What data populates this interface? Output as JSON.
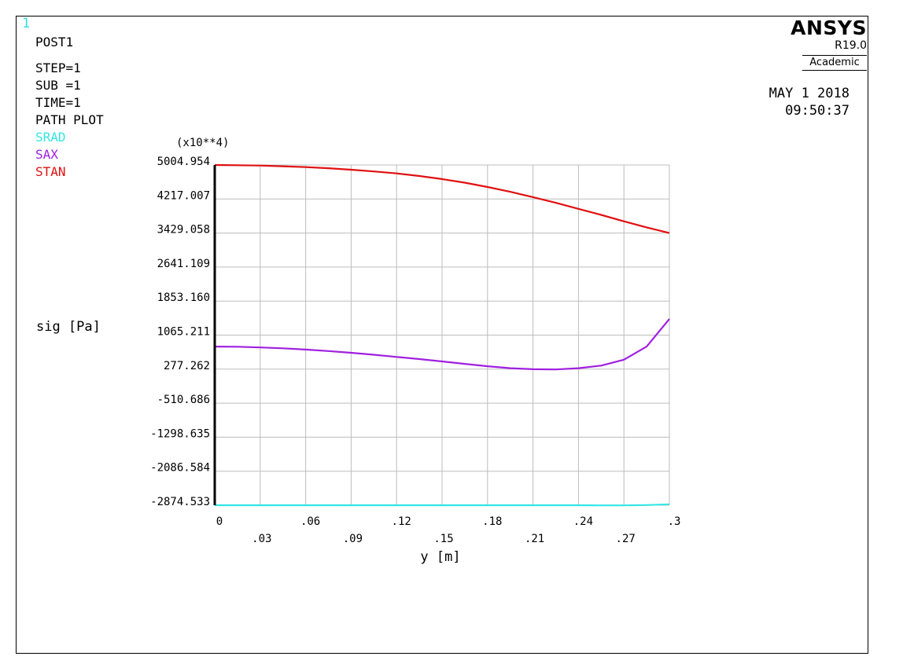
{
  "window_number": "1",
  "header": {
    "module": "POST1",
    "step": "STEP=1",
    "sub": "SUB =1",
    "time": "TIME=1",
    "plot_type": "PATH PLOT"
  },
  "logo": {
    "name": "ANSYS",
    "release": "R19.0",
    "edition": "Academic"
  },
  "date": "MAY  1 2018",
  "time": "09:50:37",
  "colors": {
    "SRAD": "#33e6e6",
    "SAX": "#a020e0",
    "STAN": "#e01010",
    "grid": "#bdbdbd"
  },
  "chart_data": {
    "type": "line",
    "xlabel": "y [m]",
    "ylabel": "sig [Pa]",
    "yscale_label": "(x10**4)",
    "xlim": [
      0,
      0.3
    ],
    "ylim": [
      -2874.533,
      5004.954
    ],
    "x_ticks_top": [
      "0",
      ".06",
      ".12",
      ".18",
      ".24",
      ".3"
    ],
    "x_ticks_bottom": [
      ".03",
      ".09",
      ".15",
      ".21",
      ".27"
    ],
    "y_ticks": [
      "5004.954",
      "4217.007",
      "3429.058",
      "2641.109",
      "1853.160",
      "1065.211",
      "277.262",
      "-510.686",
      "-1298.635",
      "-2086.584",
      "-2874.533"
    ],
    "legend": [
      "SRAD",
      "SAX",
      "STAN"
    ],
    "x": [
      0,
      0.015,
      0.03,
      0.045,
      0.06,
      0.075,
      0.09,
      0.105,
      0.12,
      0.135,
      0.15,
      0.165,
      0.18,
      0.195,
      0.21,
      0.225,
      0.24,
      0.255,
      0.27,
      0.285,
      0.3
    ],
    "series": [
      {
        "name": "SRAD",
        "values": [
          -2874.5,
          -2874.5,
          -2874.5,
          -2874.5,
          -2874.5,
          -2874.5,
          -2874.5,
          -2874.5,
          -2874.5,
          -2874.5,
          -2874.5,
          -2874.5,
          -2874.5,
          -2874.5,
          -2874.5,
          -2874.5,
          -2874.5,
          -2878,
          -2878,
          -2870,
          -2852
        ]
      },
      {
        "name": "SAX",
        "values": [
          800,
          795,
          780,
          760,
          730,
          695,
          655,
          610,
          560,
          510,
          455,
          400,
          345,
          300,
          275,
          270,
          300,
          360,
          495,
          800,
          1440
        ]
      },
      {
        "name": "STAN",
        "values": [
          5004.9,
          5000,
          4992,
          4975,
          4955,
          4930,
          4895,
          4855,
          4810,
          4750,
          4680,
          4595,
          4495,
          4385,
          4260,
          4130,
          3990,
          3850,
          3700,
          3560,
          3429
        ]
      }
    ]
  }
}
